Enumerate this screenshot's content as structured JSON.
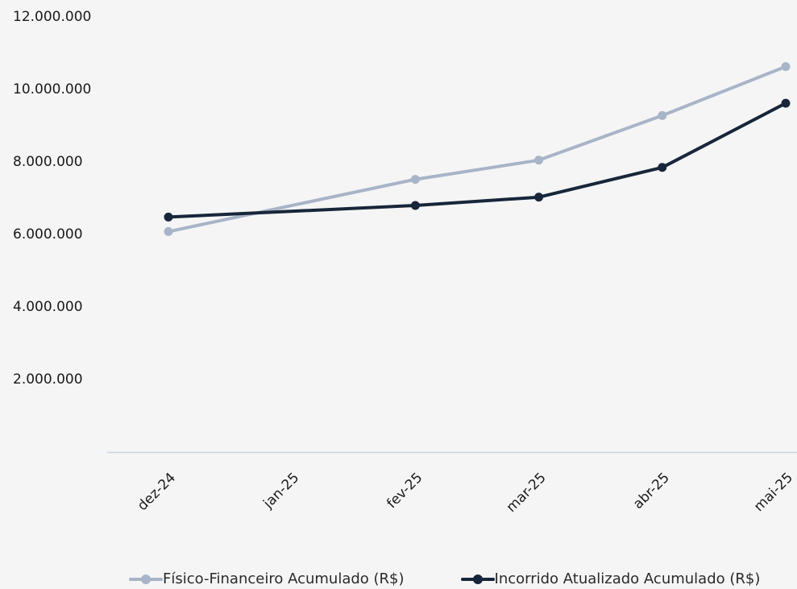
{
  "chart_data": {
    "type": "line",
    "categories": [
      "dez-24",
      "jan-25",
      "fev-25",
      "mar-25",
      "abr-25",
      "mai-25"
    ],
    "series": [
      {
        "name": "Físico-Financeiro Acumulado (R$)",
        "color": "#a8b4c7",
        "values": [
          6080000,
          null,
          7520000,
          8050000,
          9280000,
          10630000
        ]
      },
      {
        "name": "Incorrido Atualizado Acumulado (R$)",
        "color": "#17263a",
        "values": [
          6480000,
          null,
          6800000,
          7030000,
          7850000,
          9620000
        ]
      }
    ],
    "y_ticks": [
      "2.000.000",
      "4.000.000",
      "6.000.000",
      "8.000.000",
      "10.000.000",
      "12.000.000"
    ],
    "y_tick_values": [
      2000000,
      4000000,
      6000000,
      8000000,
      10000000,
      12000000
    ],
    "ylim": [
      0,
      12000000
    ],
    "grid": false,
    "legend_position": "bottom",
    "title": "",
    "xlabel": "",
    "ylabel": ""
  }
}
